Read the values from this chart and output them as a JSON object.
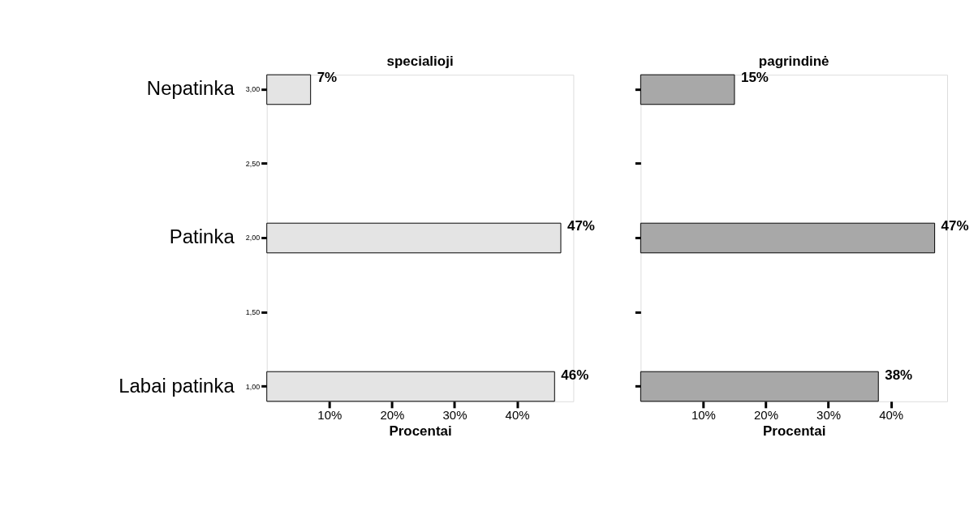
{
  "chart_data": [
    {
      "type": "bar",
      "orientation": "horizontal",
      "title": "specialioji",
      "xlabel": "Procentai",
      "categories": [
        "3,00",
        "2,50",
        "2,00",
        "1,50",
        "1,00"
      ],
      "series": [
        {
          "color": "#e4e4e4",
          "values": [
            7,
            null,
            47,
            null,
            46
          ],
          "value_labels": [
            "7%",
            null,
            "47%",
            null,
            "46%"
          ]
        }
      ],
      "xlim": [
        0,
        49
      ],
      "xticks": [
        {
          "value": 10,
          "label": "10%"
        },
        {
          "value": 20,
          "label": "20%"
        },
        {
          "value": 30,
          "label": "30%"
        },
        {
          "value": 40,
          "label": "40%"
        }
      ],
      "annotations": [
        "Nepatinka",
        "Patinka",
        "Labai patinka"
      ],
      "grid": false
    },
    {
      "type": "bar",
      "orientation": "horizontal",
      "title": "pagrindinė",
      "xlabel": "Procentai",
      "categories": [
        "3,00",
        "2,50",
        "2,00",
        "1,50",
        "1,00"
      ],
      "series": [
        {
          "color": "#a8a8a8",
          "values": [
            15,
            null,
            47,
            null,
            38
          ],
          "value_labels": [
            "15%",
            null,
            "47%",
            null,
            "38%"
          ]
        }
      ],
      "xlim": [
        0,
        49
      ],
      "xticks": [
        {
          "value": 10,
          "label": "10%"
        },
        {
          "value": 20,
          "label": "20%"
        },
        {
          "value": 30,
          "label": "30%"
        },
        {
          "value": 40,
          "label": "40%"
        }
      ],
      "tick_labels": "x",
      "grid": false
    }
  ]
}
